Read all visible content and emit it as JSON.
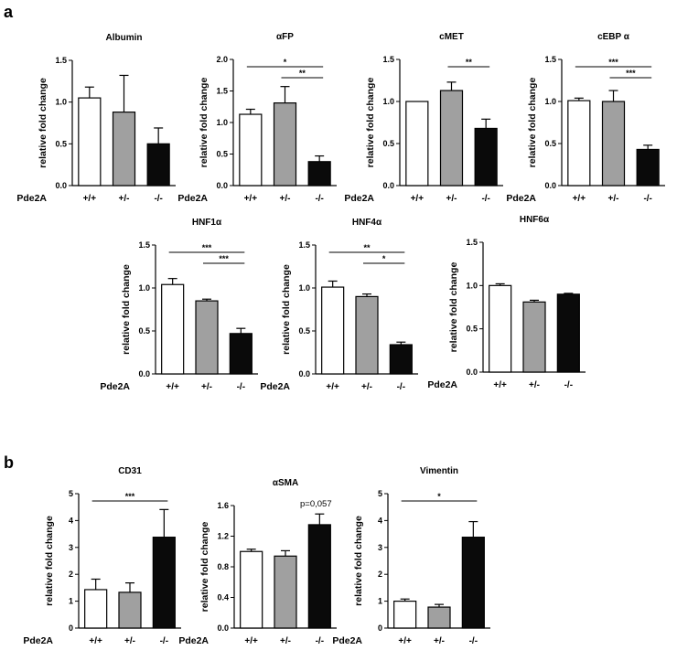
{
  "panel_labels": [
    "a",
    "b"
  ],
  "chart_data": [
    {
      "panel": "a",
      "type": "bar",
      "title": "Albumin",
      "ylabel": "relative fold change",
      "ylim": [
        0,
        1.5
      ],
      "yticks": [
        "0.0",
        "0.5",
        "1.0",
        "1.5"
      ],
      "genotype_label": "Pde2A",
      "categories": [
        "+/+",
        "+/-",
        "-/-"
      ],
      "values": [
        1.05,
        0.88,
        0.5
      ],
      "errors": [
        0.13,
        0.44,
        0.19
      ],
      "colors": [
        "#ffffff",
        "#a0a0a0",
        "#0a0a0a"
      ],
      "brackets": []
    },
    {
      "panel": "a",
      "type": "bar",
      "title": "αFP",
      "ylabel": "relative fold change",
      "ylim": [
        0,
        2.0
      ],
      "yticks": [
        "0.0",
        "0.5",
        "1.0",
        "1.5",
        "2.0"
      ],
      "genotype_label": "Pde2A",
      "categories": [
        "+/+",
        "+/-",
        "-/-"
      ],
      "values": [
        1.13,
        1.31,
        0.38
      ],
      "errors": [
        0.08,
        0.26,
        0.09
      ],
      "colors": [
        "#ffffff",
        "#a0a0a0",
        "#0a0a0a"
      ],
      "brackets": [
        {
          "from": 0,
          "to": 2,
          "label": "*"
        },
        {
          "from": 1,
          "to": 2,
          "label": "**"
        }
      ]
    },
    {
      "panel": "a",
      "type": "bar",
      "title": "cMET",
      "ylabel": "relative fold change",
      "ylim": [
        0,
        1.5
      ],
      "yticks": [
        "0.0",
        "0.5",
        "1.0",
        "1.5"
      ],
      "genotype_label": "Pde2A",
      "categories": [
        "+/+",
        "+/-",
        "-/-"
      ],
      "values": [
        1.0,
        1.13,
        0.68
      ],
      "errors": [
        0.0,
        0.1,
        0.11
      ],
      "colors": [
        "#ffffff",
        "#a0a0a0",
        "#0a0a0a"
      ],
      "brackets": [
        {
          "from": 1,
          "to": 2,
          "label": "**"
        }
      ]
    },
    {
      "panel": "a",
      "type": "bar",
      "title": "cEBP α",
      "ylabel": "relative fold change",
      "ylim": [
        0,
        1.5
      ],
      "yticks": [
        "0.0",
        "0.5",
        "1.0",
        "1.5"
      ],
      "genotype_label": "Pde2A",
      "categories": [
        "+/+",
        "+/-",
        "-/-"
      ],
      "values": [
        1.01,
        1.0,
        0.43
      ],
      "errors": [
        0.03,
        0.13,
        0.05
      ],
      "colors": [
        "#ffffff",
        "#a0a0a0",
        "#0a0a0a"
      ],
      "brackets": [
        {
          "from": 0,
          "to": 2,
          "label": "***"
        },
        {
          "from": 1,
          "to": 2,
          "label": "***"
        }
      ]
    },
    {
      "panel": "a",
      "type": "bar",
      "title": "HNF1α",
      "ylabel": "relative fold change",
      "ylim": [
        0,
        1.5
      ],
      "yticks": [
        "0.0",
        "0.5",
        "1.0",
        "1.5"
      ],
      "genotype_label": "Pde2A",
      "categories": [
        "+/+",
        "+/-",
        "-/-"
      ],
      "values": [
        1.04,
        0.85,
        0.47
      ],
      "errors": [
        0.07,
        0.02,
        0.06
      ],
      "colors": [
        "#ffffff",
        "#a0a0a0",
        "#0a0a0a"
      ],
      "brackets": [
        {
          "from": 0,
          "to": 2,
          "label": "***"
        },
        {
          "from": 1,
          "to": 2,
          "label": "***"
        }
      ]
    },
    {
      "panel": "a",
      "type": "bar",
      "title": "HNF4α",
      "ylabel": "relative fold change",
      "ylim": [
        0,
        1.5
      ],
      "yticks": [
        "0.0",
        "0.5",
        "1.0",
        "1.5"
      ],
      "genotype_label": "Pde2A",
      "categories": [
        "+/+",
        "+/-",
        "-/-"
      ],
      "values": [
        1.01,
        0.9,
        0.34
      ],
      "errors": [
        0.07,
        0.03,
        0.03
      ],
      "colors": [
        "#ffffff",
        "#a0a0a0",
        "#0a0a0a"
      ],
      "brackets": [
        {
          "from": 0,
          "to": 2,
          "label": "**"
        },
        {
          "from": 1,
          "to": 2,
          "label": "*"
        }
      ]
    },
    {
      "panel": "a",
      "type": "bar",
      "title": "HNF6α",
      "ylabel": "relative fold change",
      "ylim": [
        0,
        1.5
      ],
      "yticks": [
        "0.0",
        "0.5",
        "1.0",
        "1.5"
      ],
      "genotype_label": "Pde2A",
      "categories": [
        "+/+",
        "+/-",
        "-/-"
      ],
      "values": [
        1.0,
        0.81,
        0.9
      ],
      "errors": [
        0.02,
        0.02,
        0.01
      ],
      "colors": [
        "#ffffff",
        "#a0a0a0",
        "#0a0a0a"
      ],
      "brackets": []
    },
    {
      "panel": "b",
      "type": "bar",
      "title": "CD31",
      "ylabel": "relative fold change",
      "ylim": [
        0,
        5
      ],
      "yticks": [
        "0",
        "1",
        "2",
        "3",
        "4",
        "5"
      ],
      "genotype_label": "Pde2A",
      "categories": [
        "+/+",
        "+/-",
        "-/-"
      ],
      "values": [
        1.43,
        1.33,
        3.38
      ],
      "errors": [
        0.39,
        0.35,
        1.03
      ],
      "colors": [
        "#ffffff",
        "#a0a0a0",
        "#0a0a0a"
      ],
      "brackets": [
        {
          "from": 0,
          "to": 2,
          "label": "***"
        }
      ]
    },
    {
      "panel": "b",
      "type": "bar",
      "title": "αSMA",
      "ylabel": "relative fold change",
      "ylim": [
        0,
        1.6
      ],
      "yticks": [
        "0.0",
        "0.4",
        "0.8",
        "1.2",
        "1.6"
      ],
      "genotype_label": "Pde2A",
      "categories": [
        "+/+",
        "+/-",
        "-/-"
      ],
      "values": [
        1.0,
        0.94,
        1.35
      ],
      "errors": [
        0.03,
        0.07,
        0.14
      ],
      "colors": [
        "#ffffff",
        "#a0a0a0",
        "#0a0a0a"
      ],
      "brackets": [],
      "annotation": "p=0,057"
    },
    {
      "panel": "b",
      "type": "bar",
      "title": "Vimentin",
      "ylabel": "relative fold change",
      "ylim": [
        0,
        5
      ],
      "yticks": [
        "0",
        "1",
        "2",
        "3",
        "4",
        "5"
      ],
      "genotype_label": "Pde2A",
      "categories": [
        "+/+",
        "+/-",
        "-/-"
      ],
      "values": [
        1.0,
        0.78,
        3.38
      ],
      "errors": [
        0.08,
        0.1,
        0.58
      ],
      "colors": [
        "#ffffff",
        "#a0a0a0",
        "#0a0a0a"
      ],
      "brackets": [
        {
          "from": 0,
          "to": 2,
          "label": "*"
        }
      ]
    }
  ]
}
